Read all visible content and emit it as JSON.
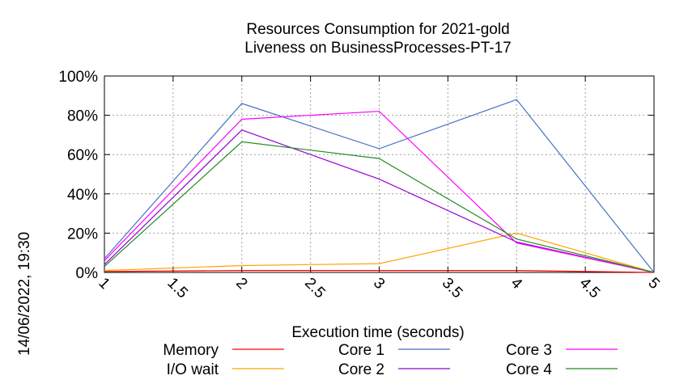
{
  "chart_data": {
    "type": "line",
    "title": "Resources Consumption for 2021-gold",
    "subtitle": "Liveness on BusinessProcesses-PT-17",
    "xlabel": "Execution time (seconds)",
    "ylabel": "",
    "timestamp": "14/06/2022, 19:30",
    "xlim": [
      1,
      5
    ],
    "ylim": [
      0,
      100
    ],
    "x_ticks": [
      "1",
      "1.5",
      "2",
      "2.5",
      "3",
      "3.5",
      "4",
      "4.5",
      "5"
    ],
    "y_ticks": [
      "0%",
      "20%",
      "40%",
      "60%",
      "80%",
      "100%"
    ],
    "grid": true,
    "legend_position": "bottom",
    "x": [
      1,
      2,
      3,
      4,
      5
    ],
    "series": [
      {
        "name": "Memory",
        "color": "#ff0000",
        "values": [
          0.5,
          1,
          1,
          1,
          0
        ]
      },
      {
        "name": "I/O wait",
        "color": "#ffa500",
        "values": [
          1,
          3.5,
          4.5,
          20,
          0
        ]
      },
      {
        "name": "Core 1",
        "color": "#4472c4",
        "values": [
          7,
          86,
          63,
          88,
          0
        ]
      },
      {
        "name": "Core 2",
        "color": "#9400d3",
        "values": [
          4,
          72.5,
          47.5,
          15.5,
          0
        ]
      },
      {
        "name": "Core 3",
        "color": "#ff00ff",
        "values": [
          6,
          78,
          82,
          15,
          0
        ]
      },
      {
        "name": "Core 4",
        "color": "#228b22",
        "values": [
          3,
          66.5,
          58,
          17,
          0
        ]
      }
    ]
  }
}
